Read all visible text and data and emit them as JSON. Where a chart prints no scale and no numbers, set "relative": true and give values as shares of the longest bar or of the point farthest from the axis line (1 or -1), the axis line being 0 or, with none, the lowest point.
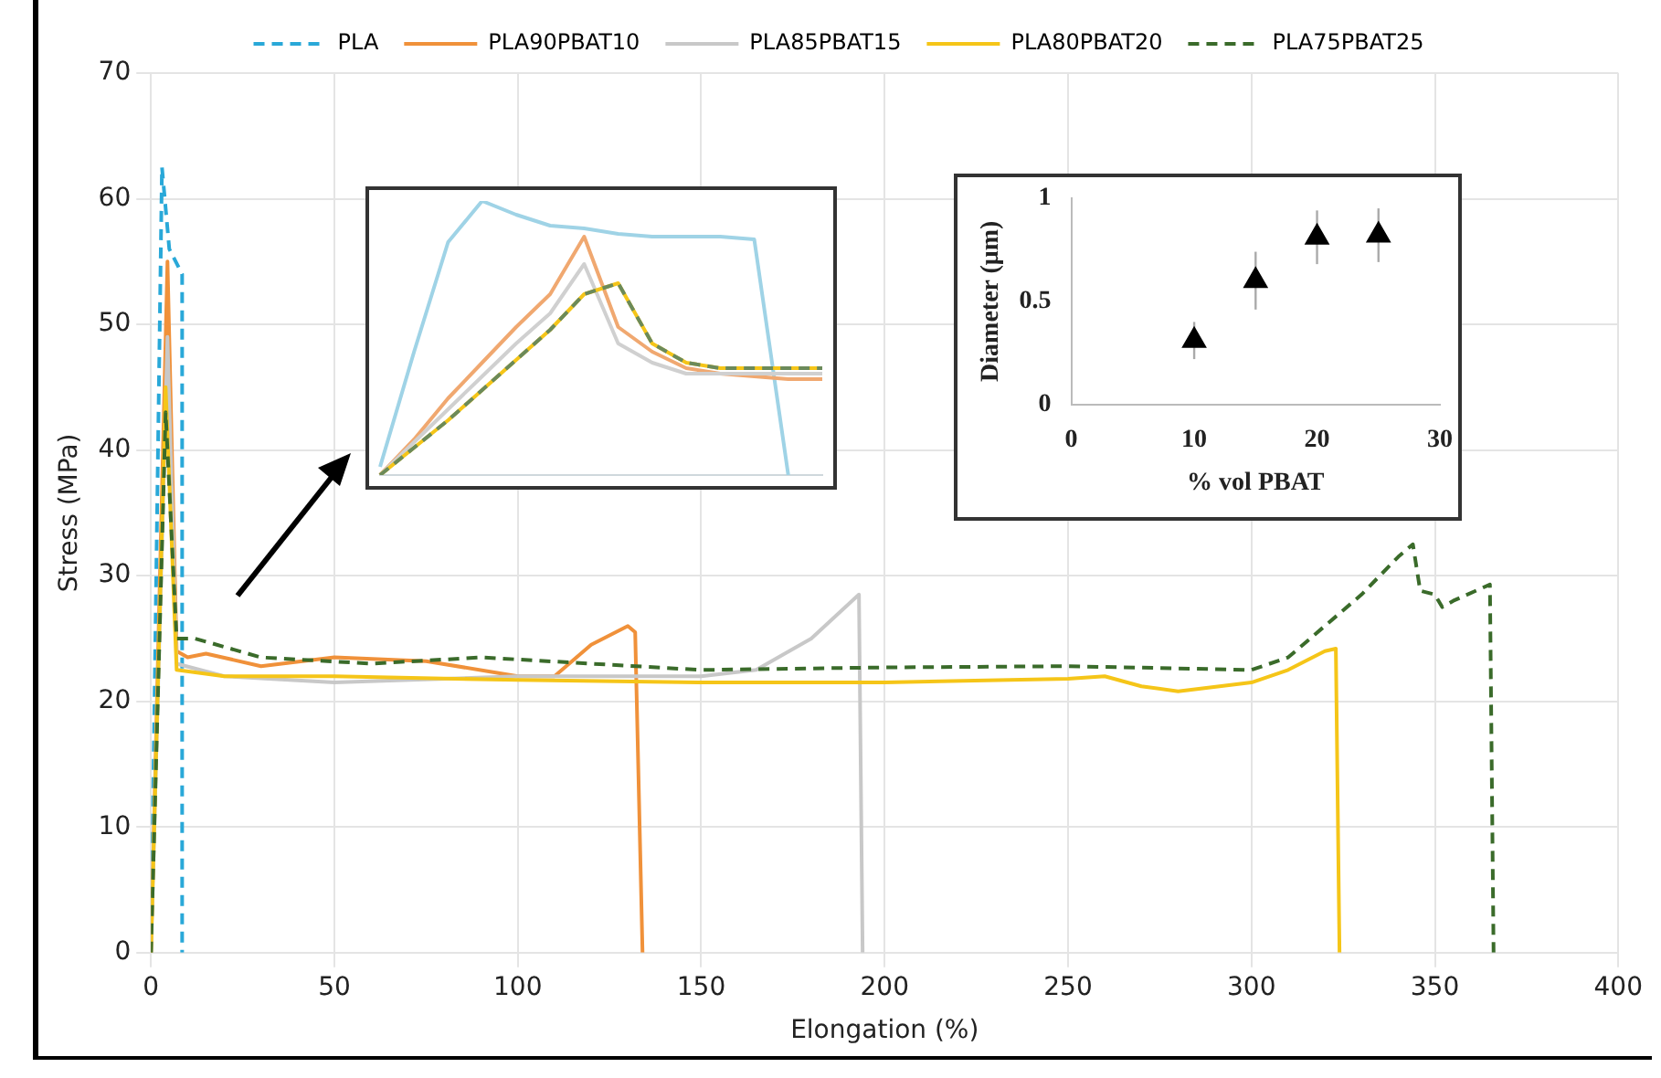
{
  "chart_data": [
    {
      "type": "line",
      "xlabel": "Elongation (%)",
      "ylabel": "Stress (MPa)",
      "xlim": [
        0,
        400
      ],
      "xticks": [
        0,
        50,
        100,
        150,
        200,
        250,
        300,
        350,
        400
      ],
      "ylim": [
        0,
        70
      ],
      "yticks": [
        0,
        10,
        20,
        30,
        40,
        50,
        60,
        70
      ],
      "grid": true,
      "legend": "top",
      "marker": "none",
      "series": [
        {
          "name": "PLA",
          "color": "#29a8d8",
          "line_style": "dashed",
          "x": [
            0,
            3,
            5,
            8.5,
            8.5
          ],
          "values": [
            0,
            62.5,
            56,
            54,
            0
          ]
        },
        {
          "name": "PLA90PBAT10",
          "color": "#f0913a",
          "line_style": "solid",
          "x": [
            0,
            4.5,
            7,
            10,
            15,
            30,
            50,
            75,
            100,
            110,
            120,
            130,
            132,
            134
          ],
          "values": [
            0,
            55,
            24,
            23.5,
            23.8,
            22.8,
            23.5,
            23.2,
            22,
            22,
            24.5,
            26,
            25.5,
            0
          ]
        },
        {
          "name": "PLA85PBAT15",
          "color": "#c8c8c8",
          "line_style": "solid",
          "x": [
            0,
            4.5,
            7,
            20,
            50,
            100,
            150,
            165,
            180,
            193,
            194
          ],
          "values": [
            0,
            49,
            23,
            22,
            21.5,
            22,
            22,
            22.5,
            25,
            28.5,
            0
          ]
        },
        {
          "name": "PLA80PBAT20",
          "color": "#f5c518",
          "line_style": "solid",
          "x": [
            0,
            4,
            7,
            20,
            50,
            100,
            150,
            200,
            250,
            260,
            270,
            280,
            300,
            310,
            320,
            323,
            324
          ],
          "values": [
            0,
            45,
            22.5,
            22,
            22,
            21.7,
            21.5,
            21.5,
            21.8,
            22,
            21.2,
            20.8,
            21.5,
            22.5,
            24,
            24.2,
            0
          ]
        },
        {
          "name": "PLA75PBAT25",
          "color": "#3a6b2a",
          "line_style": "dashed",
          "x": [
            0,
            4,
            7,
            12,
            30,
            60,
            90,
            120,
            150,
            200,
            250,
            300,
            310,
            320,
            330,
            340,
            344,
            346,
            350,
            352,
            355,
            365,
            366
          ],
          "values": [
            0,
            43,
            25,
            25,
            23.5,
            23,
            23.5,
            23,
            22.5,
            22.7,
            22.8,
            22.5,
            23.5,
            26,
            28.5,
            31.5,
            32.5,
            28.8,
            28.5,
            27.5,
            28,
            29.3,
            0
          ]
        }
      ]
    },
    {
      "type": "line",
      "relative": true,
      "marker": "none",
      "categories": [
        null,
        null,
        null,
        null,
        null,
        null,
        null,
        null,
        null,
        null,
        null,
        null,
        null,
        null
      ],
      "series": [
        {
          "color": "#9fd3e6",
          "line_style": "solid",
          "values": [
            0.03,
            0.45,
            0.85,
            1,
            0.95,
            0.91,
            0.9,
            0.88,
            0.87,
            0.87,
            0.87,
            0.86,
            0,
            null
          ]
        },
        {
          "color": "#f0a870",
          "line_style": "solid",
          "values": [
            0,
            0.13,
            0.28,
            0.41,
            0.54,
            0.66,
            0.87,
            0.54,
            0.45,
            0.39,
            0.37,
            0.36,
            0.35,
            0.35
          ]
        },
        {
          "color": "#d0d0d0",
          "line_style": "solid",
          "values": [
            0,
            0.12,
            0.24,
            0.36,
            0.48,
            0.59,
            0.77,
            0.48,
            0.41,
            0.37,
            0.37,
            0.37,
            0.37,
            0.37
          ]
        },
        {
          "color": "#f5c518",
          "line_style": "solid",
          "values": [
            0,
            0.1,
            0.2,
            0.31,
            0.42,
            0.53,
            0.66,
            0.7,
            0.48,
            0.41,
            0.39,
            0.39,
            0.39,
            0.39
          ]
        },
        {
          "color": "#6b8a5a",
          "line_style": "dashed",
          "values": [
            0,
            0.1,
            0.2,
            0.31,
            0.42,
            0.53,
            0.66,
            0.7,
            0.48,
            0.41,
            0.39,
            0.39,
            0.39,
            0.39
          ]
        }
      ]
    },
    {
      "type": "scatter",
      "xlabel": "% vol PBAT",
      "ylabel": "Diameter (μm)",
      "xlim": [
        0,
        30
      ],
      "xticks": [
        0,
        10,
        20,
        30
      ],
      "ylim": [
        0,
        1
      ],
      "yticks": [
        0,
        0.5,
        1
      ],
      "marker": "triangle",
      "x": [
        10,
        15,
        20,
        25
      ],
      "values": [
        0.31,
        0.6,
        0.81,
        0.82
      ],
      "errors": [
        0.09,
        0.14,
        0.13,
        0.13
      ],
      "color": "#000000"
    }
  ]
}
